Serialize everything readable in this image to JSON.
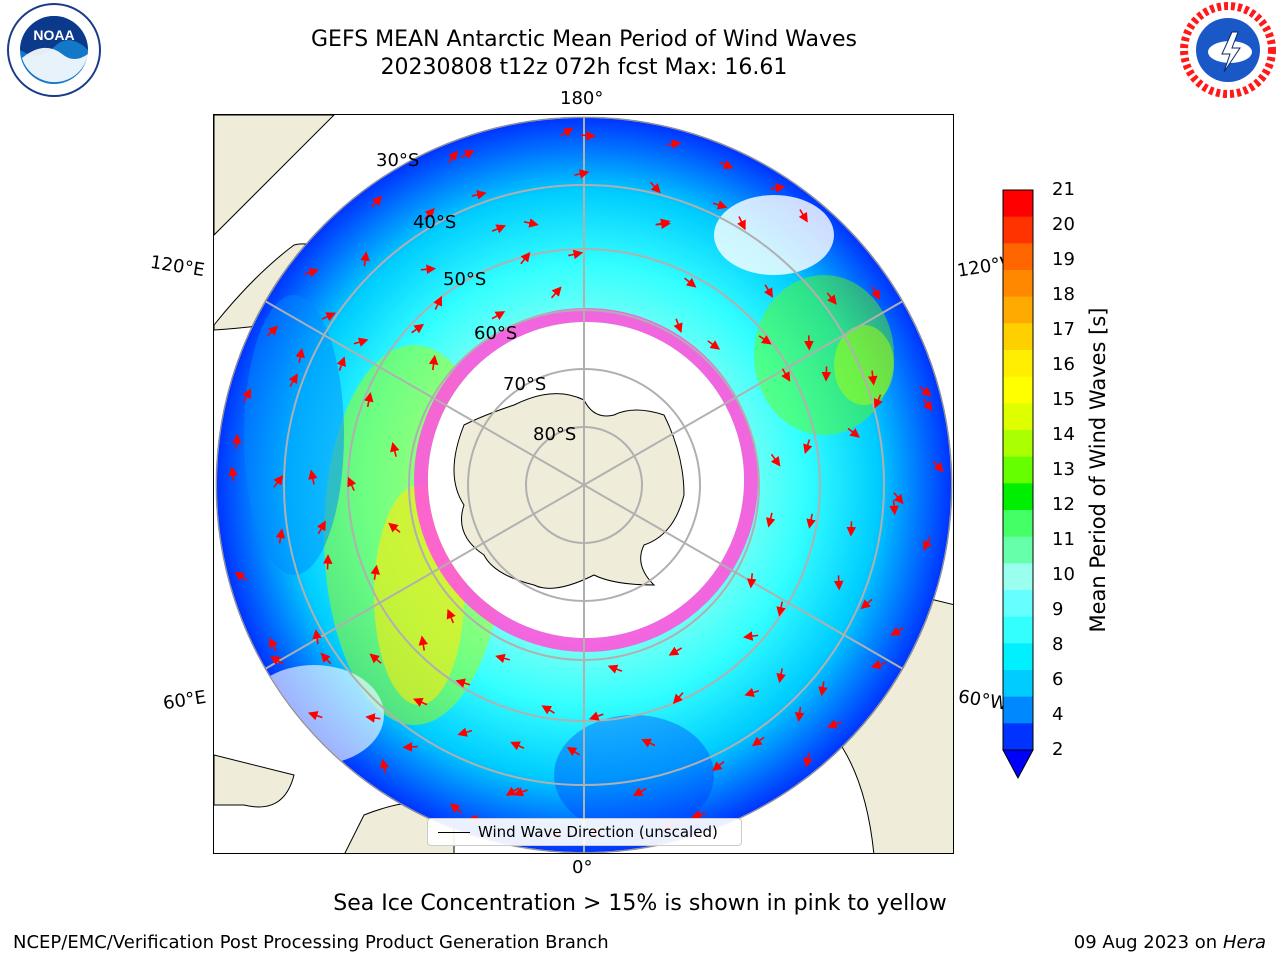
{
  "title": {
    "line1": "GEFS MEAN Antarctic Mean Period of Wind Waves",
    "line2": "20230808 t12z 072h fcst   Max: 16.61"
  },
  "logos": {
    "left": {
      "icon": "noaa-logo",
      "text": "NOAA"
    },
    "right": {
      "icon": "national-weather-service-logo",
      "text": "NATIONAL WEATHER SERVICE"
    }
  },
  "map": {
    "projection": "south-polar-stereographic",
    "longitude_labels": {
      "top": "180°",
      "left_upper": "120°E",
      "right_upper": "120°W",
      "left_lower": "60°E",
      "right_lower": "60°W",
      "bottom": "0°"
    },
    "latitude_labels": [
      "30°S",
      "40°S",
      "50°S",
      "60°S",
      "70°S",
      "80°S"
    ],
    "arrow_color": "#ff0000",
    "land_color": "#efecda",
    "ice_color": "#ff55dd"
  },
  "legend": {
    "label": "Wind Wave Direction (unscaled)"
  },
  "colorbar": {
    "label": "Mean Period of Wind Waves [s]",
    "ticks": [
      "21",
      "20",
      "19",
      "18",
      "17",
      "16",
      "15",
      "14",
      "13",
      "12",
      "11",
      "10",
      "9",
      "8",
      "6",
      "4",
      "2"
    ],
    "colors_top_to_bottom": [
      "#ff0000",
      "#ff3300",
      "#ff6600",
      "#ff8800",
      "#ffaa00",
      "#ffd000",
      "#ffee00",
      "#ffff00",
      "#ddff00",
      "#aaff00",
      "#66ff00",
      "#00ee00",
      "#44ff66",
      "#66ffaa",
      "#99ffee",
      "#66ffff",
      "#33ffff",
      "#00f0ff",
      "#00ccff",
      "#0088ff",
      "#0033ff"
    ]
  },
  "bottom_note": "Sea Ice Concentration > 15% is shown in pink to yellow",
  "footer": {
    "left": "NCEP/EMC/Verification Post Processing Product Generation Branch",
    "right_date": "09 Aug 2023 on",
    "right_host": "Hera"
  }
}
